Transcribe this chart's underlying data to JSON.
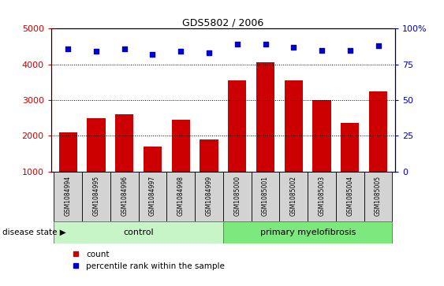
{
  "title": "GDS5802 / 2006",
  "samples": [
    "GSM1084994",
    "GSM1084995",
    "GSM1084996",
    "GSM1084997",
    "GSM1084998",
    "GSM1084999",
    "GSM1085000",
    "GSM1085001",
    "GSM1085002",
    "GSM1085003",
    "GSM1085004",
    "GSM1085005"
  ],
  "counts": [
    2100,
    2500,
    2600,
    1700,
    2450,
    1900,
    3550,
    4050,
    3550,
    3000,
    2370,
    3250
  ],
  "percentiles": [
    86,
    84,
    86,
    82,
    84,
    83,
    89,
    89,
    87,
    85,
    85,
    88
  ],
  "bar_color": "#cc0000",
  "dot_color": "#0000cc",
  "ylim_left": [
    1000,
    5000
  ],
  "ylim_right": [
    0,
    100
  ],
  "yticks_left": [
    1000,
    2000,
    3000,
    4000,
    5000
  ],
  "yticks_right": [
    0,
    25,
    50,
    75,
    100
  ],
  "ytick_right_labels": [
    "0",
    "25",
    "50",
    "75",
    "100%"
  ],
  "control_group_count": 6,
  "disease_group_count": 6,
  "control_label": "control",
  "disease_label": "primary myelofibrosis",
  "group_label": "disease state",
  "legend_count_label": "count",
  "legend_pct_label": "percentile rank within the sample",
  "control_color": "#c8f5c8",
  "disease_color": "#7de87d",
  "tick_bg_color": "#d3d3d3",
  "grid_color": "#000000",
  "left_axis_color": "#cc0000",
  "right_axis_color": "#0000cc",
  "bg_color": "#ffffff"
}
